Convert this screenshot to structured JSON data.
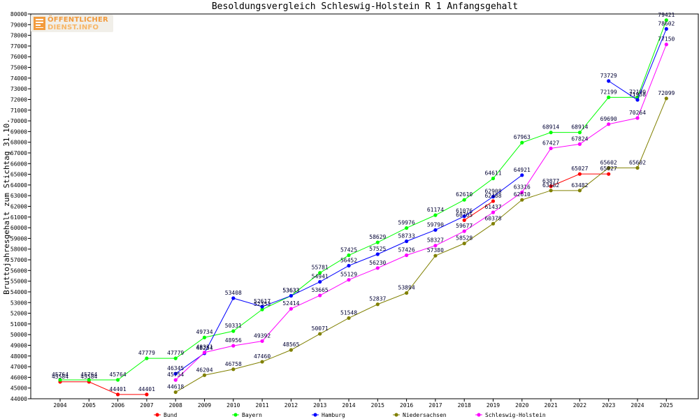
{
  "logo": {
    "line1": "ÖFFENTLICHER",
    "line2": "DIENST.INFO"
  },
  "chart_data": {
    "type": "line",
    "title": "Besoldungsvergleich Schleswig-Holstein R 1 Anfangsgehalt",
    "xlabel": "",
    "ylabel": "Bruttojahresgehalt zum Stichtag 31.10.",
    "ylim": [
      44000,
      80000
    ],
    "ytick_step": 1000,
    "grid": false,
    "legend_position": "bottom",
    "categories": [
      "2004",
      "2005",
      "2006",
      "2007",
      "2008",
      "2009",
      "2010",
      "2011",
      "2012",
      "2013",
      "2014",
      "2015",
      "2016",
      "2017",
      "2018",
      "2019",
      "2020",
      "2021",
      "2022",
      "2023",
      "2024",
      "2025"
    ],
    "series": [
      {
        "name": "Bund",
        "color": "#ff0000",
        "values": [
          45584,
          45584,
          44401,
          44401,
          null,
          null,
          null,
          null,
          null,
          null,
          null,
          null,
          null,
          null,
          60705,
          62488,
          null,
          63877,
          65027,
          65027,
          null,
          null
        ]
      },
      {
        "name": "Bayern",
        "color": "#00ff00",
        "values": [
          45764,
          45764,
          45764,
          47779,
          47779,
          49734,
          50331,
          52353,
          53633,
          55781,
          57425,
          58629,
          59976,
          61174,
          62610,
          64611,
          67963,
          68914,
          68914,
          72199,
          72199,
          79421
        ]
      },
      {
        "name": "Hamburg",
        "color": "#0000ff",
        "values": [
          null,
          null,
          null,
          null,
          46345,
          48254,
          53408,
          52617,
          53633,
          54941,
          56452,
          57525,
          58733,
          59790,
          61076,
          62908,
          64921,
          null,
          null,
          73729,
          71958,
          78602
        ]
      },
      {
        "name": "Niedersachsen",
        "color": "#808000",
        "values": [
          null,
          null,
          null,
          null,
          44618,
          46204,
          46758,
          47460,
          48565,
          50071,
          51548,
          52837,
          53894,
          57380,
          58528,
          60378,
          62610,
          63482,
          63482,
          65602,
          65602,
          72099
        ]
      },
      {
        "name": "Schleswig-Holstein",
        "color": "#ff00ff",
        "values": [
          null,
          null,
          null,
          null,
          45754,
          48331,
          48956,
          49392,
          52414,
          53665,
          55129,
          56230,
          57426,
          58327,
          59677,
          61437,
          63316,
          67427,
          67824,
          69690,
          70264,
          77150
        ]
      }
    ]
  }
}
